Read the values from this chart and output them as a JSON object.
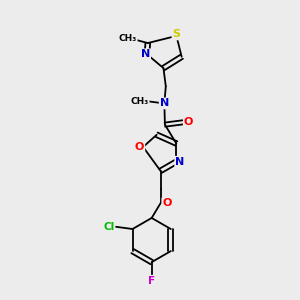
{
  "bg_color": "#ececec",
  "bond_color": "#000000",
  "atom_colors": {
    "N": "#0000cc",
    "O": "#ff0000",
    "S": "#cccc00",
    "Cl": "#00bb00",
    "F": "#cc00cc",
    "C": "#000000"
  },
  "lw": 1.3,
  "fs": 7.5
}
